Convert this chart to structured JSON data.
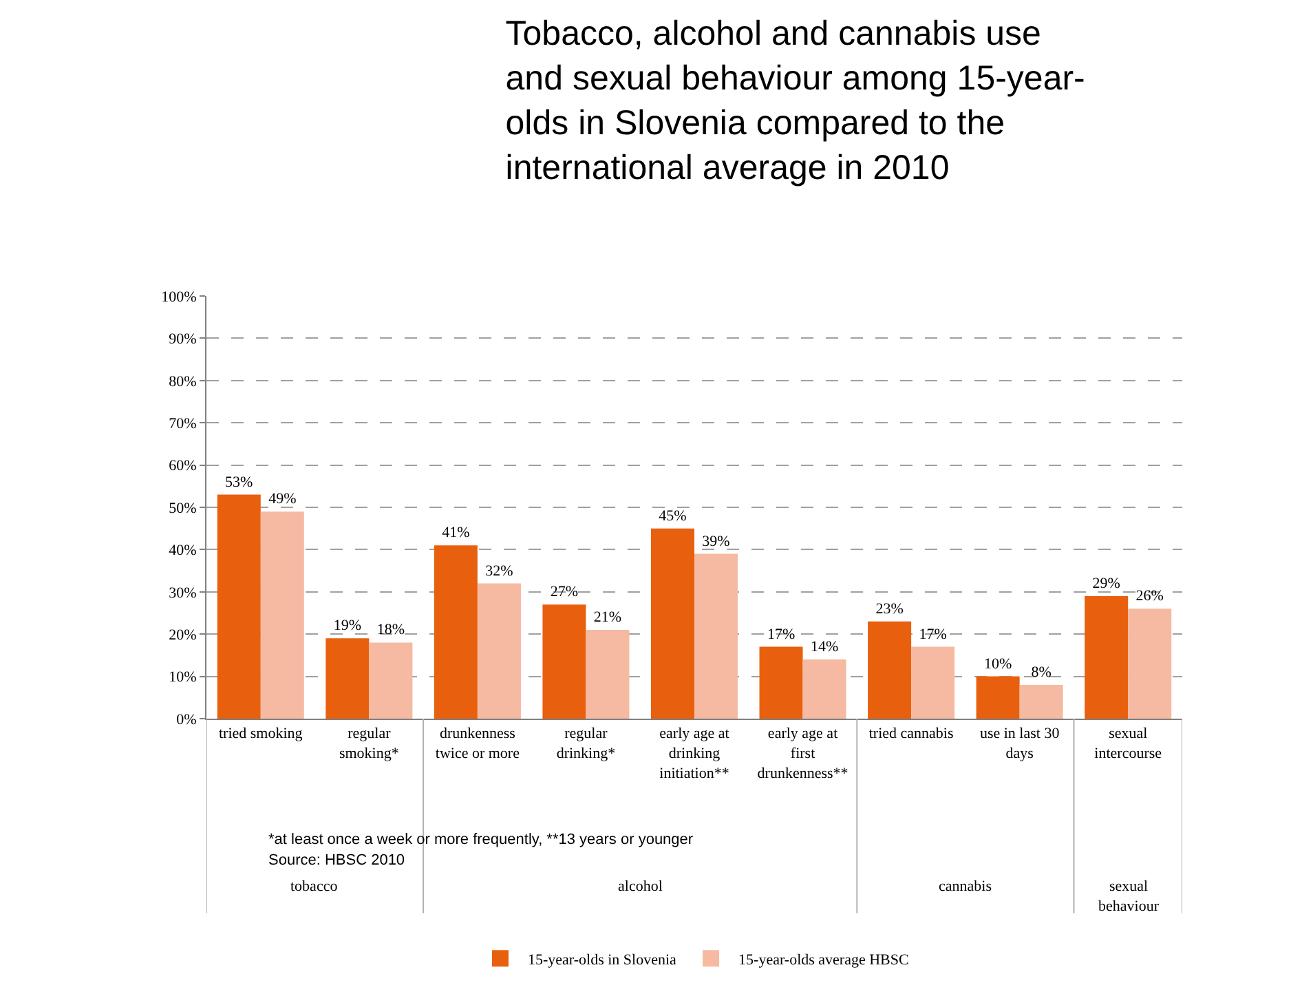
{
  "chart_data": {
    "type": "bar",
    "title": "Tobacco, alcohol and cannabis use and sexual behaviour among 15-year-olds in Slovenia compared to the international average in 2010",
    "categories": [
      "tried smoking",
      "regular smoking*",
      "drunkenness twice or more",
      "regular drinking*",
      "early age at drinking initiation**",
      "early age at first drunkenness**",
      "tried cannabis",
      "use in last 30 days",
      "sexual intercourse"
    ],
    "series": [
      {
        "name": "15-year-olds in Slovenia",
        "color": "#e8600e",
        "values": [
          53,
          19,
          41,
          27,
          45,
          17,
          23,
          10,
          29
        ],
        "value_labels": [
          "53%",
          "19%",
          "41%",
          "27%",
          "45%",
          "17%",
          "23%",
          "10%",
          "29%"
        ]
      },
      {
        "name": "15-year-olds average HBSC",
        "color": "#f6b9a2",
        "values": [
          49,
          18,
          32,
          21,
          39,
          14,
          17,
          8,
          26
        ],
        "value_labels": [
          "49%",
          "18%",
          "32%",
          "21%",
          "39%",
          "14%",
          "17%",
          "8%",
          "26%"
        ]
      }
    ],
    "ylim": [
      0,
      100
    ],
    "yticks": [
      {
        "value": 0,
        "label": "0%"
      },
      {
        "value": 10,
        "label": "10%"
      },
      {
        "value": 20,
        "label": "20%"
      },
      {
        "value": 30,
        "label": "30%"
      },
      {
        "value": 40,
        "label": "40%"
      },
      {
        "value": 50,
        "label": "50%"
      },
      {
        "value": 60,
        "label": "60%"
      },
      {
        "value": 70,
        "label": "70%"
      },
      {
        "value": 80,
        "label": "80%"
      },
      {
        "value": 90,
        "label": "90%"
      },
      {
        "value": 100,
        "label": "100%"
      }
    ],
    "grid": "y",
    "legend": "bottom",
    "annotations": [
      "*at least once a week or more frequently, **13 years or younger",
      "Source: HBSC 2010",
      "tobacco",
      "alcohol",
      "cannabis",
      "sexual behaviour"
    ]
  }
}
